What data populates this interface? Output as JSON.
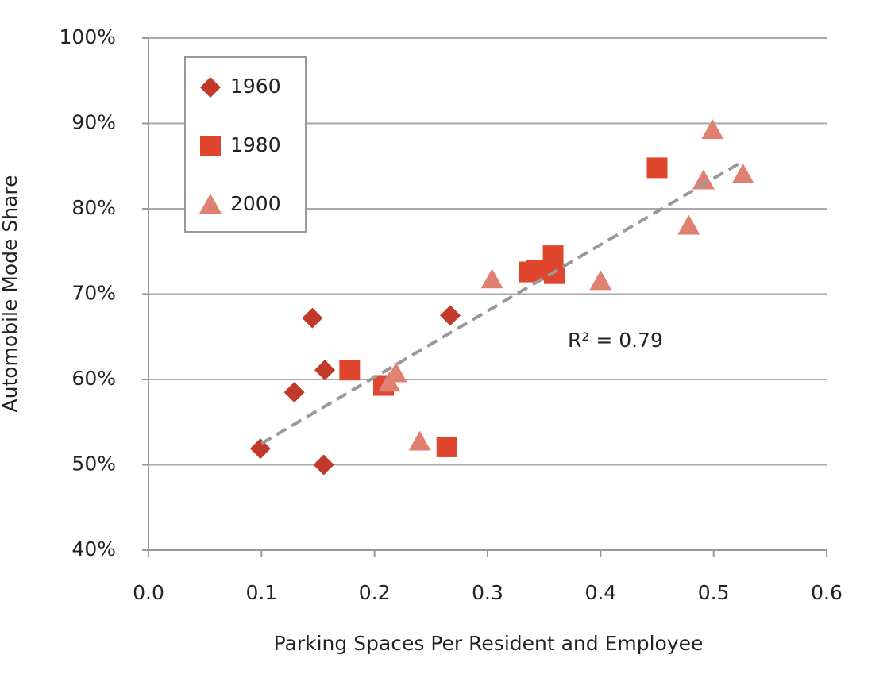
{
  "chart_data": {
    "type": "scatter",
    "x_label": "Parking Spaces Per Resident and Employee",
    "y_label": "Automobile Mode Share",
    "annotation": "R² = 0.79",
    "xlim": [
      0,
      0.6
    ],
    "xticks": [
      {
        "value": 0,
        "label": "0.0"
      },
      0.1,
      0.2,
      0.3,
      0.4,
      0.5,
      0.6
    ],
    "ylim": [
      40,
      100
    ],
    "yticks": [
      {
        "value": 40,
        "label": "40%"
      },
      {
        "value": 50,
        "label": "50%"
      },
      {
        "value": 60,
        "label": "60%"
      },
      {
        "value": 70,
        "label": "70%"
      },
      {
        "value": 80,
        "label": "80%"
      },
      {
        "value": 90,
        "label": "90%"
      },
      {
        "value": 100,
        "label": "100%"
      }
    ],
    "grid": true,
    "legend": "upper-left",
    "series": [
      {
        "name": "1960",
        "color": "#c0392b",
        "marker": "diamond",
        "x": [
          0.099,
          0.155,
          0.129,
          0.145,
          0.156,
          0.267
        ],
        "values": [
          51.9,
          50.0,
          58.5,
          67.2,
          61.1,
          67.5
        ]
      },
      {
        "name": "1980",
        "color": "#e0452e",
        "marker": "square",
        "x": [
          0.178,
          0.208,
          0.264,
          0.337,
          0.343,
          0.358,
          0.359,
          0.45
        ],
        "values": [
          61.1,
          59.3,
          52.1,
          72.6,
          72.8,
          74.5,
          72.4,
          84.8
        ]
      },
      {
        "name": "2000",
        "color": "#e08070",
        "marker": "triangle",
        "x": [
          0.219,
          0.213,
          0.24,
          0.304,
          0.4,
          0.478,
          0.491,
          0.499,
          0.526
        ],
        "values": [
          60.7,
          59.6,
          52.7,
          71.7,
          71.5,
          78.0,
          83.3,
          89.2,
          84.0
        ]
      }
    ],
    "trendline": {
      "color": "#999999",
      "x": [
        0.1,
        0.525
      ],
      "values": [
        52.5,
        85.5
      ]
    }
  }
}
